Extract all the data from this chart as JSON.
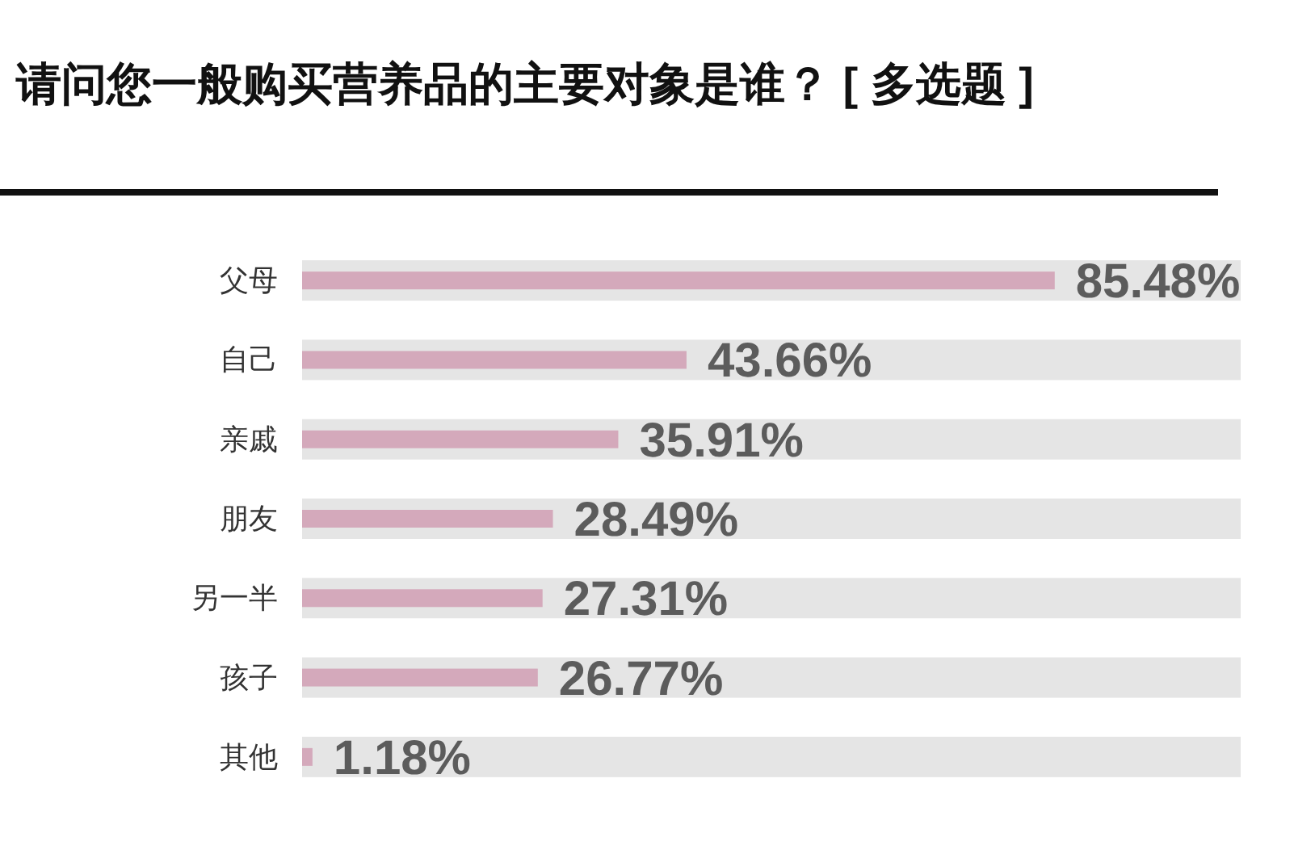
{
  "chart_data": {
    "type": "bar",
    "orientation": "horizontal",
    "title": "请问您一般购买营养品的主要对象是谁？ [ 多选题 ]",
    "categories": [
      "父母",
      "自己",
      "亲戚",
      "朋友",
      "另一半",
      "孩子",
      "其他"
    ],
    "series": [
      {
        "color": "#e5e5e5",
        "values": [
          106.6,
          106.6,
          106.6,
          106.6,
          106.6,
          106.6,
          106.6
        ]
      },
      {
        "color": "#d4a9bb",
        "values": [
          85.48,
          43.66,
          35.91,
          28.49,
          27.31,
          26.77,
          1.18
        ],
        "value_labels": [
          "85.48%",
          "43.66%",
          "35.91%",
          "28.49%",
          "27.31%",
          "26.77%",
          "1.18%"
        ]
      }
    ],
    "xlim": [
      0,
      106.6
    ],
    "tick_labels": "y"
  }
}
